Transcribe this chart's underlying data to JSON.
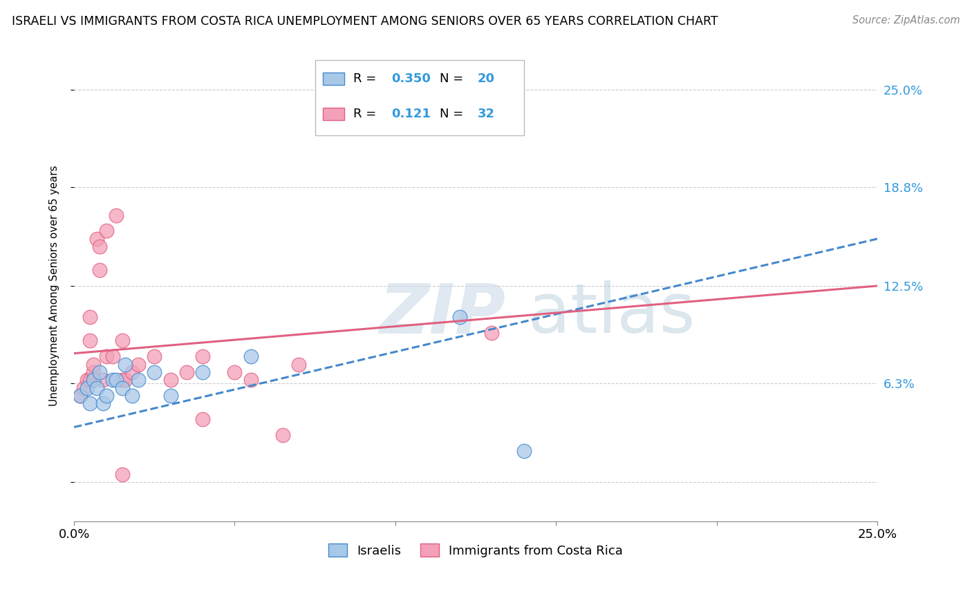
{
  "title": "ISRAELI VS IMMIGRANTS FROM COSTA RICA UNEMPLOYMENT AMONG SENIORS OVER 65 YEARS CORRELATION CHART",
  "source": "Source: ZipAtlas.com",
  "ylabel": "Unemployment Among Seniors over 65 years",
  "legend_label1": "Israelis",
  "legend_label2": "Immigrants from Costa Rica",
  "r1": "0.350",
  "n1": "20",
  "r2": "0.121",
  "n2": "32",
  "xlim": [
    0.0,
    0.25
  ],
  "ylim": [
    -0.025,
    0.275
  ],
  "yticks": [
    0.0,
    0.063,
    0.125,
    0.188,
    0.25
  ],
  "ytick_labels": [
    "",
    "6.3%",
    "12.5%",
    "18.8%",
    "25.0%"
  ],
  "color_blue": "#a8c8e8",
  "color_pink": "#f4a0b8",
  "color_blue_line": "#4488cc",
  "color_pink_line": "#e06080",
  "watermark_color": "#d8e8f4",
  "israelis_x": [
    0.002,
    0.004,
    0.005,
    0.006,
    0.007,
    0.008,
    0.009,
    0.01,
    0.012,
    0.013,
    0.015,
    0.016,
    0.018,
    0.02,
    0.025,
    0.03,
    0.04,
    0.055,
    0.12,
    0.14
  ],
  "israelis_y": [
    0.055,
    0.06,
    0.05,
    0.065,
    0.06,
    0.07,
    0.05,
    0.055,
    0.065,
    0.065,
    0.06,
    0.075,
    0.055,
    0.065,
    0.07,
    0.055,
    0.07,
    0.08,
    0.105,
    0.02
  ],
  "costarica_x": [
    0.002,
    0.003,
    0.004,
    0.005,
    0.005,
    0.005,
    0.006,
    0.006,
    0.007,
    0.008,
    0.008,
    0.009,
    0.01,
    0.01,
    0.012,
    0.013,
    0.015,
    0.015,
    0.016,
    0.018,
    0.02,
    0.025,
    0.03,
    0.035,
    0.04,
    0.04,
    0.05,
    0.055,
    0.065,
    0.07,
    0.13,
    0.015
  ],
  "costarica_y": [
    0.055,
    0.06,
    0.065,
    0.09,
    0.105,
    0.065,
    0.07,
    0.075,
    0.155,
    0.135,
    0.15,
    0.065,
    0.08,
    0.16,
    0.08,
    0.17,
    0.065,
    0.09,
    0.065,
    0.07,
    0.075,
    0.08,
    0.065,
    0.07,
    0.08,
    0.04,
    0.07,
    0.065,
    0.03,
    0.075,
    0.095,
    0.005
  ],
  "blue_line_x": [
    0.0,
    0.25
  ],
  "blue_line_y": [
    0.035,
    0.155
  ],
  "pink_line_x": [
    0.0,
    0.25
  ],
  "pink_line_y": [
    0.082,
    0.125
  ]
}
